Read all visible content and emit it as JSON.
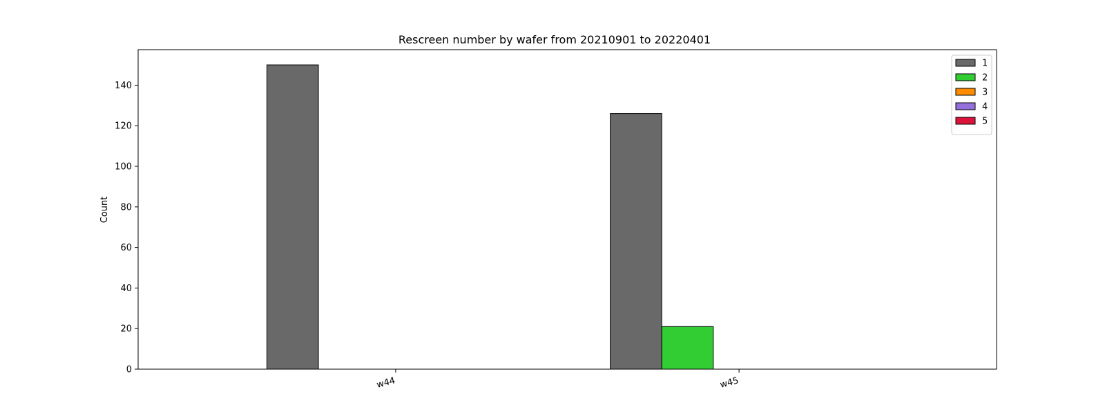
{
  "chart_data": {
    "type": "bar",
    "title": "Rescreen number  by wafer from 20210901 to 20220401",
    "xlabel": "",
    "ylabel": "Count",
    "categories": [
      "w44",
      "w45"
    ],
    "ylim": [
      0,
      157.5
    ],
    "yticks": [
      0,
      20,
      40,
      60,
      80,
      100,
      120,
      140
    ],
    "grid": false,
    "legend_position": "top-right",
    "series": [
      {
        "name": "1",
        "color": "#696969",
        "values": [
          150,
          126
        ]
      },
      {
        "name": "2",
        "color": "#32cd32",
        "values": [
          0,
          21
        ]
      },
      {
        "name": "3",
        "color": "#ff8c00",
        "values": [
          0,
          0
        ]
      },
      {
        "name": "4",
        "color": "#9370db",
        "values": [
          0,
          0
        ]
      },
      {
        "name": "5",
        "color": "#dc143c",
        "values": [
          0,
          0
        ]
      }
    ]
  }
}
